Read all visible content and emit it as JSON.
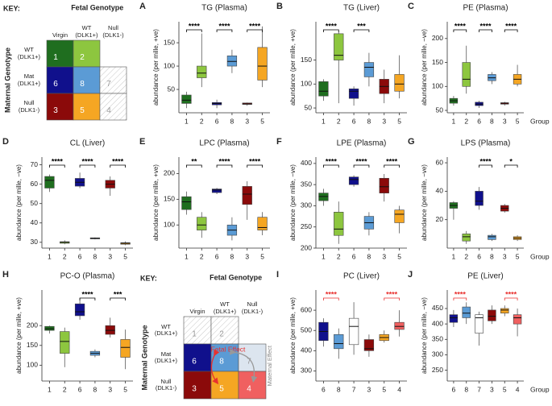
{
  "chart_data": [
    {
      "type": "box",
      "label": "A",
      "title": "TG (Plasma)",
      "ylabel": "abundance (per mille, +ve)",
      "categories": [
        "1",
        "2",
        "6",
        "8",
        "3",
        "5"
      ],
      "colors": [
        "#1f6e1f",
        "#8dc63f",
        "#10108c",
        "#5b9bd5",
        "#8b0a0a",
        "#f5a623"
      ],
      "min": [
        10,
        55,
        10,
        85,
        15,
        55
      ],
      "q1": [
        20,
        75,
        17,
        100,
        18,
        70
      ],
      "median": [
        27,
        85,
        20,
        110,
        19,
        100
      ],
      "q3": [
        38,
        100,
        22,
        122,
        21,
        140
      ],
      "max": [
        45,
        170,
        28,
        135,
        22,
        185
      ],
      "ylim": [
        0,
        195
      ],
      "yticks": [
        50,
        100,
        150
      ],
      "bracket_color": "#000000",
      "brackets": [
        {
          "groups": [
            "1",
            "2"
          ],
          "label": "****"
        },
        {
          "groups": [
            "6",
            "8"
          ],
          "label": "****"
        },
        {
          "groups": [
            "3",
            "5"
          ],
          "label": "****"
        }
      ]
    },
    {
      "type": "box",
      "label": "B",
      "title": "TG (Liver)",
      "ylabel": "abundance (per mille, +ve)",
      "categories": [
        "1",
        "2",
        "6",
        "8",
        "3",
        "5"
      ],
      "colors": [
        "#1f6e1f",
        "#8dc63f",
        "#10108c",
        "#5b9bd5",
        "#8b0a0a",
        "#f5a623"
      ],
      "min": [
        65,
        60,
        55,
        95,
        60,
        70
      ],
      "q1": [
        75,
        150,
        70,
        115,
        80,
        85
      ],
      "median": [
        85,
        160,
        85,
        135,
        95,
        100
      ],
      "q3": [
        105,
        205,
        90,
        145,
        110,
        120
      ],
      "max": [
        110,
        210,
        95,
        165,
        130,
        160
      ],
      "ylim": [
        40,
        230
      ],
      "yticks": [
        50,
        100,
        150
      ],
      "bracket_color": "#000000",
      "brackets": [
        {
          "groups": [
            "1",
            "2"
          ],
          "label": "****"
        },
        {
          "groups": [
            "6",
            "8"
          ],
          "label": "***"
        }
      ]
    },
    {
      "type": "box",
      "label": "C",
      "title": "PE (Plasma)",
      "ylabel": "abundance (per mille, −ve)",
      "xlabel": "Group",
      "categories": [
        "1",
        "2",
        "6",
        "8",
        "3",
        "5"
      ],
      "colors": [
        "#1f6e1f",
        "#8dc63f",
        "#10108c",
        "#5b9bd5",
        "#8b0a0a",
        "#f5a623"
      ],
      "min": [
        60,
        85,
        55,
        105,
        60,
        100
      ],
      "q1": [
        65,
        100,
        60,
        112,
        63,
        105
      ],
      "median": [
        70,
        115,
        63,
        118,
        65,
        115
      ],
      "q3": [
        75,
        150,
        67,
        125,
        66,
        125
      ],
      "max": [
        80,
        185,
        70,
        130,
        68,
        145
      ],
      "ylim": [
        45,
        235
      ],
      "yticks": [
        50,
        100,
        150,
        200
      ],
      "bracket_color": "#000000",
      "brackets": [
        {
          "groups": [
            "1",
            "2"
          ],
          "label": "****"
        },
        {
          "groups": [
            "6",
            "8"
          ],
          "label": "****"
        },
        {
          "groups": [
            "3",
            "5"
          ],
          "label": "****"
        }
      ]
    },
    {
      "type": "box",
      "label": "D",
      "title": "CL (Liver)",
      "ylabel": "abundance (per mille, −ve)",
      "categories": [
        "1",
        "2",
        "6",
        "8",
        "3",
        "5"
      ],
      "colors": [
        "#1f6e1f",
        "#8dc63f",
        "#10108c",
        "#5b9bd5",
        "#8b0a0a",
        "#f5a623"
      ],
      "min": [
        56,
        29,
        58,
        31.5,
        54,
        28.5
      ],
      "q1": [
        58,
        29.5,
        59,
        31.8,
        58,
        29
      ],
      "median": [
        62,
        30,
        61,
        32,
        60,
        29.5
      ],
      "q3": [
        64,
        30.3,
        63,
        32.3,
        62,
        29.8
      ],
      "max": [
        65,
        31,
        66,
        32.5,
        64,
        30.5
      ],
      "ylim": [
        27,
        74
      ],
      "yticks": [
        30,
        40,
        50,
        60,
        70
      ],
      "bracket_color": "#000000",
      "brackets": [
        {
          "groups": [
            "1",
            "2"
          ],
          "label": "****"
        },
        {
          "groups": [
            "6",
            "8"
          ],
          "label": "****"
        },
        {
          "groups": [
            "3",
            "5"
          ],
          "label": "****"
        }
      ]
    },
    {
      "type": "box",
      "label": "E",
      "title": "LPC (Plasma)",
      "ylabel": "abundance (per mille, +ve)",
      "categories": [
        "1",
        "2",
        "6",
        "8",
        "3",
        "5"
      ],
      "colors": [
        "#1f6e1f",
        "#8dc63f",
        "#10108c",
        "#5b9bd5",
        "#8b0a0a",
        "#f5a623"
      ],
      "min": [
        120,
        75,
        160,
        70,
        110,
        80
      ],
      "q1": [
        130,
        90,
        163,
        80,
        140,
        90
      ],
      "median": [
        145,
        100,
        168,
        90,
        160,
        95
      ],
      "q3": [
        155,
        115,
        170,
        100,
        175,
        115
      ],
      "max": [
        165,
        125,
        172,
        115,
        185,
        125
      ],
      "ylim": [
        55,
        232
      ],
      "yticks": [
        100,
        150,
        200
      ],
      "bracket_color": "#000000",
      "brackets": [
        {
          "groups": [
            "1",
            "2"
          ],
          "label": "**"
        },
        {
          "groups": [
            "6",
            "8"
          ],
          "label": "****"
        },
        {
          "groups": [
            "3",
            "5"
          ],
          "label": "****"
        }
      ]
    },
    {
      "type": "box",
      "label": "F",
      "title": "LPE (Plasma)",
      "ylabel": "abundance (per mille, −ve)",
      "categories": [
        "1",
        "2",
        "6",
        "8",
        "3",
        "5"
      ],
      "colors": [
        "#1f6e1f",
        "#8dc63f",
        "#10108c",
        "#5b9bd5",
        "#8b0a0a",
        "#f5a623"
      ],
      "min": [
        300,
        210,
        345,
        230,
        310,
        235
      ],
      "q1": [
        312,
        230,
        350,
        245,
        330,
        260
      ],
      "median": [
        322,
        245,
        362,
        260,
        345,
        280
      ],
      "q3": [
        330,
        285,
        368,
        275,
        365,
        290
      ],
      "max": [
        340,
        310,
        372,
        285,
        375,
        300
      ],
      "ylim": [
        200,
        415
      ],
      "yticks": [
        200,
        250,
        300,
        350,
        400
      ],
      "bracket_color": "#000000",
      "brackets": [
        {
          "groups": [
            "1",
            "2"
          ],
          "label": "****"
        },
        {
          "groups": [
            "6",
            "8"
          ],
          "label": "****"
        },
        {
          "groups": [
            "3",
            "5"
          ],
          "label": "****"
        }
      ]
    },
    {
      "type": "box",
      "label": "G",
      "title": "LPS (Plasma)",
      "ylabel": "abundance (per mille, −ve)",
      "xlabel": "Group",
      "categories": [
        "1",
        "2",
        "6",
        "8",
        "3",
        "5"
      ],
      "colors": [
        "#1f6e1f",
        "#8dc63f",
        "#10108c",
        "#5b9bd5",
        "#8b0a0a",
        "#f5a623"
      ],
      "min": [
        20,
        3,
        27,
        5,
        25,
        5
      ],
      "q1": [
        28,
        5,
        30,
        6,
        26,
        6
      ],
      "median": [
        30,
        8,
        33,
        8,
        28,
        7
      ],
      "q3": [
        32,
        10,
        40,
        9,
        30,
        8
      ],
      "max": [
        33,
        12,
        43,
        10,
        31,
        9
      ],
      "ylim": [
        0,
        64
      ],
      "yticks": [
        20,
        40,
        60
      ],
      "bracket_color": "#000000",
      "brackets": [
        {
          "groups": [
            "6",
            "8"
          ],
          "label": "****"
        },
        {
          "groups": [
            "3",
            "5"
          ],
          "label": "*"
        }
      ]
    },
    {
      "type": "box",
      "label": "H",
      "title": "PC-O (Plasma)",
      "ylabel": "abundance (per mille, +ve)",
      "categories": [
        "1",
        "2",
        "6",
        "8",
        "3",
        "5"
      ],
      "colors": [
        "#1f6e1f",
        "#8dc63f",
        "#10108c",
        "#5b9bd5",
        "#8b0a0a",
        "#f5a623"
      ],
      "min": [
        180,
        95,
        215,
        120,
        170,
        90
      ],
      "q1": [
        188,
        130,
        225,
        125,
        178,
        120
      ],
      "median": [
        192,
        160,
        235,
        130,
        188,
        145
      ],
      "q3": [
        198,
        185,
        255,
        135,
        200,
        165
      ],
      "max": [
        200,
        195,
        270,
        140,
        220,
        190
      ],
      "ylim": [
        60,
        290
      ],
      "yticks": [
        100,
        150,
        200
      ],
      "bracket_color": "#000000",
      "brackets": [
        {
          "groups": [
            "6",
            "8"
          ],
          "label": "****"
        },
        {
          "groups": [
            "3",
            "5"
          ],
          "label": "***"
        }
      ]
    },
    {
      "type": "box",
      "label": "I",
      "title": "PC (Liver)",
      "ylabel": "abundance (per mille, +ve)",
      "categories": [
        "6",
        "8",
        "7",
        "3",
        "5",
        "4"
      ],
      "colors": [
        "#10108c",
        "#5b9bd5",
        "#ffffff",
        "#8b0a0a",
        "#f5a623",
        "#f06060"
      ],
      "min": [
        420,
        360,
        380,
        370,
        440,
        470
      ],
      "q1": [
        450,
        410,
        430,
        400,
        450,
        505
      ],
      "median": [
        495,
        435,
        520,
        410,
        465,
        520
      ],
      "q3": [
        540,
        480,
        560,
        455,
        480,
        540
      ],
      "max": [
        560,
        510,
        640,
        480,
        500,
        600
      ],
      "ylim": [
        250,
        700
      ],
      "yticks": [
        300,
        400,
        500,
        600
      ],
      "bracket_color": "#e8312f",
      "brackets": [
        {
          "groups": [
            "6",
            "8"
          ],
          "label": "****"
        },
        {
          "groups": [
            "5",
            "4"
          ],
          "label": "****"
        }
      ]
    },
    {
      "type": "box",
      "label": "J",
      "title": "PE (Liver)",
      "ylabel": "abundance (per mille, −ve)",
      "xlabel": "Group",
      "categories": [
        "6",
        "8",
        "7",
        "3",
        "5",
        "4"
      ],
      "colors": [
        "#10108c",
        "#5b9bd5",
        "#ffffff",
        "#8b0a0a",
        "#f5a623",
        "#f06060"
      ],
      "min": [
        390,
        400,
        330,
        400,
        425,
        360
      ],
      "q1": [
        405,
        420,
        370,
        410,
        435,
        400
      ],
      "median": [
        420,
        435,
        420,
        425,
        445,
        420
      ],
      "q3": [
        430,
        455,
        430,
        445,
        450,
        430
      ],
      "max": [
        445,
        470,
        440,
        460,
        460,
        450
      ],
      "ylim": [
        215,
        510
      ],
      "yticks": [
        250,
        300,
        350,
        400,
        450
      ],
      "bracket_color": "#e8312f",
      "brackets": [
        {
          "groups": [
            "6",
            "8"
          ],
          "label": "****"
        },
        {
          "groups": [
            "5",
            "4"
          ],
          "label": "****"
        }
      ]
    }
  ],
  "keys": [
    {
      "title": "KEY:",
      "col_header": "Fetal Genotype",
      "row_header": "Maternal Genotype",
      "columns": [
        "Virgin",
        "WT (DLK1+)",
        "Null (DLK1-)"
      ],
      "rows": [
        "WT (DLK1+)",
        "Mat (DLK1+)",
        "Null (DLK1-)"
      ],
      "cells": [
        [
          "1",
          "2",
          null
        ],
        [
          "6",
          "8",
          "7"
        ],
        [
          "3",
          "5",
          "4"
        ]
      ],
      "cell_colors": [
        [
          "#1f6e1f",
          "#8dc63f",
          null
        ],
        [
          "#10108c",
          "#5b9bd5",
          "hatched"
        ],
        [
          "#8b0a0a",
          "#f5a623",
          "hatched"
        ]
      ]
    },
    {
      "title": "KEY:",
      "col_header": "Fetal Genotype",
      "row_header": "Maternal Genotype",
      "columns": [
        "Virgin",
        "WT (DLK1+)",
        "Null (DLK1-)"
      ],
      "rows": [
        "WT (DLK1+)",
        "Mat (DLK1+)",
        "Null (DLK1-)"
      ],
      "cells": [
        [
          "1",
          "2",
          null
        ],
        [
          "6",
          "8",
          "7"
        ],
        [
          "3",
          "5",
          "4"
        ]
      ],
      "cell_colors": [
        [
          "hatched",
          "hatched",
          null
        ],
        [
          "#10108c",
          "#5b9bd5",
          "#dce5ef"
        ],
        [
          "#8b0a0a",
          "#f5a623",
          "#f06060"
        ]
      ],
      "fetal_effect": "Fetal Effect",
      "maternal_effect": "Maternal Effect"
    }
  ]
}
